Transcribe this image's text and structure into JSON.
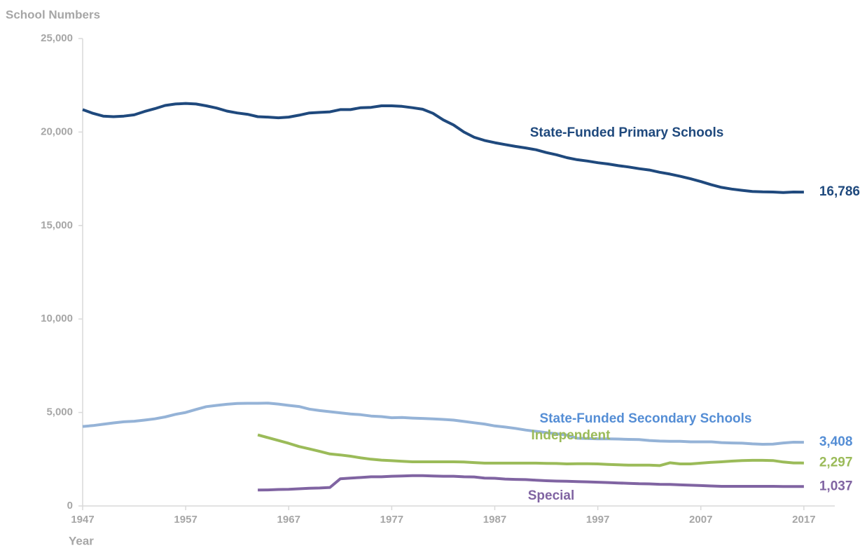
{
  "chart_data": {
    "type": "line",
    "y_label": "School Numbers",
    "x_label": "Year",
    "x": [
      1947,
      1948,
      1949,
      1950,
      1951,
      1952,
      1953,
      1954,
      1955,
      1956,
      1957,
      1958,
      1959,
      1960,
      1961,
      1962,
      1963,
      1964,
      1965,
      1966,
      1967,
      1968,
      1969,
      1970,
      1971,
      1972,
      1973,
      1974,
      1975,
      1976,
      1977,
      1978,
      1979,
      1980,
      1981,
      1982,
      1983,
      1984,
      1985,
      1986,
      1987,
      1988,
      1989,
      1990,
      1991,
      1992,
      1993,
      1994,
      1995,
      1996,
      1997,
      1998,
      1999,
      2000,
      2001,
      2002,
      2003,
      2004,
      2005,
      2006,
      2007,
      2008,
      2009,
      2010,
      2011,
      2012,
      2013,
      2014,
      2015,
      2016,
      2017
    ],
    "xlim": [
      1947,
      2020
    ],
    "xticks": [
      1947,
      1957,
      1967,
      1977,
      1987,
      1997,
      2007,
      2017
    ],
    "ylim": [
      0,
      25000
    ],
    "yticks": [
      0,
      {
        "value": 5000,
        "label": "5,000"
      },
      {
        "value": 10000,
        "label": "10,000"
      },
      {
        "value": 15000,
        "label": "15,000"
      },
      {
        "value": 20000,
        "label": "20,000"
      },
      {
        "value": 25000,
        "label": "25,000"
      }
    ],
    "series": [
      {
        "name": "State-Funded Primary Schools",
        "color": "#1f497d",
        "label_color": "#1f497d",
        "values": [
          21200,
          21000,
          20850,
          20820,
          20850,
          20920,
          21100,
          21250,
          21420,
          21500,
          21530,
          21500,
          21400,
          21280,
          21120,
          21020,
          20950,
          20820,
          20800,
          20760,
          20800,
          20900,
          21020,
          21050,
          21080,
          21200,
          21200,
          21300,
          21320,
          21400,
          21400,
          21370,
          21300,
          21220,
          21000,
          20650,
          20380,
          20000,
          19720,
          19550,
          19430,
          19330,
          19230,
          19150,
          19050,
          18900,
          18780,
          18630,
          18520,
          18450,
          18360,
          18290,
          18200,
          18130,
          18040,
          17970,
          17850,
          17750,
          17630,
          17500,
          17350,
          17180,
          17040,
          16950,
          16880,
          16820,
          16800,
          16790,
          16760,
          16790,
          16786
        ],
        "value_labels": [
          null,
          null,
          null,
          null,
          null,
          null,
          null,
          null,
          null,
          null,
          null,
          null,
          null,
          null,
          null,
          null,
          null,
          null,
          null,
          null,
          null,
          null,
          null,
          null,
          null,
          null,
          null,
          null,
          null,
          null,
          null,
          null,
          null,
          null,
          null,
          null,
          null,
          null,
          null,
          null,
          null,
          null,
          null,
          null,
          null,
          null,
          null,
          null,
          null,
          null,
          null,
          null,
          null,
          null,
          null,
          null,
          null,
          null,
          null,
          null,
          null,
          null,
          null,
          null,
          null,
          null,
          null,
          null,
          null,
          null,
          "16,786"
        ]
      },
      {
        "name": "State-Funded Secondary Schools",
        "color": "#95b3d7",
        "label_color": "#558ed5",
        "values": [
          4250,
          4300,
          4370,
          4440,
          4500,
          4530,
          4590,
          4660,
          4760,
          4900,
          5000,
          5160,
          5310,
          5380,
          5440,
          5480,
          5490,
          5490,
          5500,
          5450,
          5380,
          5320,
          5180,
          5100,
          5040,
          4980,
          4920,
          4880,
          4810,
          4780,
          4720,
          4730,
          4700,
          4680,
          4660,
          4630,
          4590,
          4520,
          4450,
          4380,
          4280,
          4220,
          4150,
          4060,
          3990,
          3920,
          3860,
          3790,
          3620,
          3610,
          3590,
          3590,
          3580,
          3560,
          3550,
          3500,
          3470,
          3460,
          3460,
          3430,
          3430,
          3430,
          3390,
          3370,
          3360,
          3320,
          3300,
          3310,
          3370,
          3410,
          3408
        ],
        "value_labels": [
          null,
          null,
          null,
          null,
          null,
          null,
          null,
          null,
          null,
          null,
          null,
          null,
          null,
          null,
          null,
          null,
          null,
          null,
          null,
          null,
          null,
          null,
          null,
          null,
          null,
          null,
          null,
          null,
          null,
          null,
          null,
          null,
          null,
          null,
          null,
          null,
          null,
          null,
          null,
          null,
          null,
          null,
          null,
          null,
          null,
          null,
          null,
          null,
          null,
          null,
          null,
          null,
          null,
          null,
          null,
          null,
          null,
          null,
          null,
          null,
          null,
          null,
          null,
          null,
          null,
          null,
          null,
          null,
          null,
          null,
          "3,408"
        ]
      },
      {
        "name": "Independent",
        "color": "#9bbb59",
        "label_color": "#9bbb59",
        "values": [
          null,
          null,
          null,
          null,
          null,
          null,
          null,
          null,
          null,
          null,
          null,
          null,
          null,
          null,
          null,
          null,
          null,
          3800,
          3650,
          3500,
          3350,
          3180,
          3050,
          2920,
          2780,
          2730,
          2660,
          2570,
          2500,
          2450,
          2420,
          2390,
          2360,
          2360,
          2360,
          2360,
          2360,
          2350,
          2320,
          2290,
          2290,
          2290,
          2290,
          2290,
          2290,
          2280,
          2270,
          2250,
          2260,
          2260,
          2250,
          2220,
          2200,
          2180,
          2180,
          2180,
          2160,
          2310,
          2250,
          2250,
          2290,
          2330,
          2360,
          2400,
          2430,
          2440,
          2440,
          2430,
          2350,
          2300,
          2297
        ],
        "value_labels": [
          null,
          null,
          null,
          null,
          null,
          null,
          null,
          null,
          null,
          null,
          null,
          null,
          null,
          null,
          null,
          null,
          null,
          null,
          null,
          null,
          null,
          null,
          null,
          null,
          null,
          null,
          null,
          null,
          null,
          null,
          null,
          null,
          null,
          null,
          null,
          null,
          null,
          null,
          null,
          null,
          null,
          null,
          null,
          null,
          null,
          null,
          null,
          null,
          null,
          null,
          null,
          null,
          null,
          null,
          null,
          null,
          null,
          null,
          null,
          null,
          null,
          null,
          null,
          null,
          null,
          null,
          null,
          null,
          null,
          null,
          "2,297"
        ]
      },
      {
        "name": "Special",
        "color": "#8064a2",
        "label_color": "#8064a2",
        "values": [
          null,
          null,
          null,
          null,
          null,
          null,
          null,
          null,
          null,
          null,
          null,
          null,
          null,
          null,
          null,
          null,
          null,
          850,
          860,
          880,
          890,
          920,
          950,
          960,
          990,
          1450,
          1490,
          1520,
          1560,
          1560,
          1590,
          1600,
          1620,
          1620,
          1600,
          1590,
          1590,
          1560,
          1550,
          1490,
          1480,
          1440,
          1420,
          1410,
          1380,
          1350,
          1330,
          1320,
          1300,
          1290,
          1270,
          1250,
          1230,
          1210,
          1190,
          1180,
          1160,
          1150,
          1130,
          1110,
          1090,
          1070,
          1050,
          1050,
          1050,
          1050,
          1050,
          1050,
          1040,
          1040,
          1037
        ],
        "value_labels": [
          null,
          null,
          null,
          null,
          null,
          null,
          null,
          null,
          null,
          null,
          null,
          null,
          null,
          null,
          null,
          null,
          null,
          null,
          null,
          null,
          null,
          null,
          null,
          null,
          null,
          null,
          null,
          null,
          null,
          null,
          null,
          null,
          null,
          null,
          null,
          null,
          null,
          null,
          null,
          null,
          null,
          null,
          null,
          null,
          null,
          null,
          null,
          null,
          null,
          null,
          null,
          null,
          null,
          null,
          null,
          null,
          null,
          null,
          null,
          null,
          null,
          null,
          null,
          null,
          null,
          null,
          null,
          null,
          null,
          null,
          "1,037"
        ]
      }
    ]
  }
}
